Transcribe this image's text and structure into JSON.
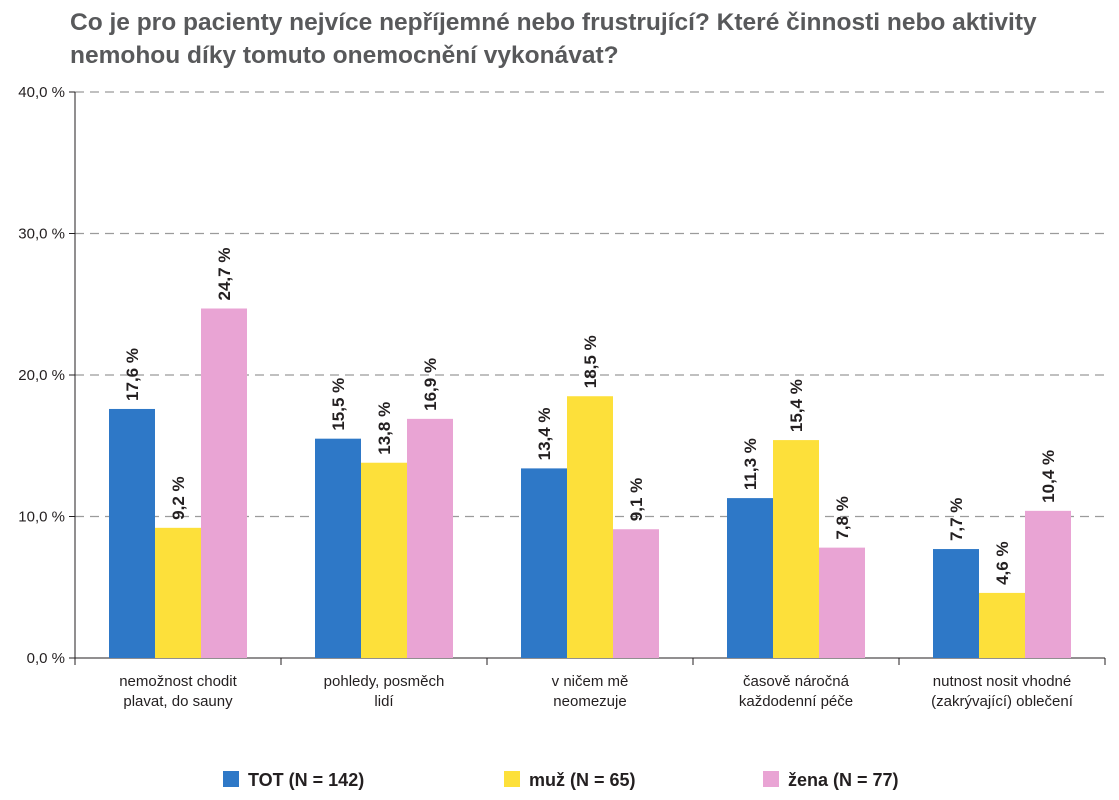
{
  "chart_data": {
    "type": "bar",
    "title": "Co je pro pacienty nejvíce nepříjemné nebo frustrující? Které činnosti nebo aktivity nemohou díky tomuto onemocnění vykonávat?",
    "categories": [
      [
        "nemožnost chodit",
        "plavat, do sauny"
      ],
      [
        "pohledy, posměch",
        "lidí"
      ],
      [
        "v ničem mě",
        "neomezuje"
      ],
      [
        "časově náročná",
        "každodenní péče"
      ],
      [
        "nutnost nosit vhodné",
        "(zakrývající) oblečení"
      ]
    ],
    "series": [
      {
        "name": "TOT (N = 142)",
        "color": "#2e78c7",
        "values": [
          17.6,
          15.5,
          13.4,
          11.3,
          7.7
        ],
        "labels": [
          "17,6 %",
          "15,5 %",
          "13,4 %",
          "11,3 %",
          "7,7 %"
        ]
      },
      {
        "name": "muž (N = 65)",
        "color": "#fde03a",
        "values": [
          9.2,
          13.8,
          18.5,
          15.4,
          4.6
        ],
        "labels": [
          "9,2 %",
          "13,8 %",
          "18,5 %",
          "15,4 %",
          "4,6 %"
        ]
      },
      {
        "name": "žena (N = 77)",
        "color": "#e9a4d4",
        "values": [
          24.7,
          16.9,
          9.1,
          7.8,
          10.4
        ],
        "labels": [
          "24,7 %",
          "16,9 %",
          "9,1 %",
          "7,8 %",
          "10,4 %"
        ]
      }
    ],
    "ylim": [
      0,
      40
    ],
    "yticks": [
      0,
      10,
      20,
      30,
      40
    ],
    "ytick_labels": [
      "0,0 %",
      "10,0 %",
      "20,0 %",
      "30,0 %",
      "40,0 %"
    ],
    "grid": true,
    "legend_position": "bottom"
  }
}
